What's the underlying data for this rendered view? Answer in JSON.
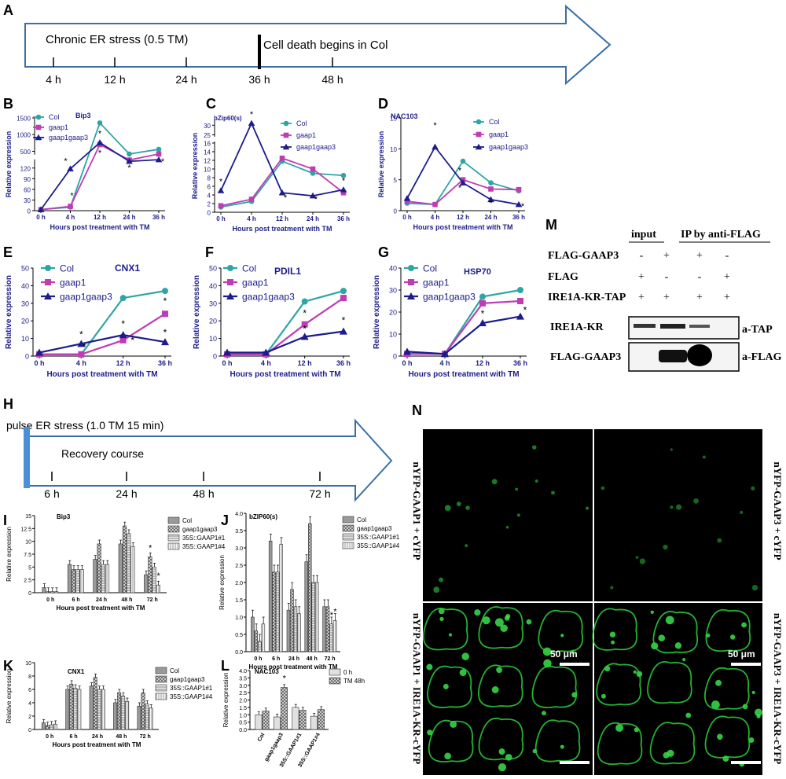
{
  "panels": {
    "A": {
      "letter": "A",
      "title": "Chronic ER stress (0.5 TM)",
      "event": "Cell death begins in Col",
      "ticks": [
        "4 h",
        "12 h",
        "24 h",
        "36 h",
        "48 h"
      ]
    },
    "H": {
      "letter": "H",
      "title": "pulse ER stress (1.0 TM 15 min)",
      "subtitle": "Recovery course",
      "ticks": [
        "6 h",
        "24 h",
        "48 h",
        "72 h"
      ]
    },
    "M": {
      "letter": "M",
      "col_headers": [
        "input",
        "IP by anti-FLAG"
      ],
      "row_labels": [
        "FLAG-GAAP3",
        "FLAG",
        "IRE1A-KR-TAP"
      ],
      "signs": [
        [
          "-",
          "+",
          "+",
          "-"
        ],
        [
          "+",
          "-",
          "-",
          "+"
        ],
        [
          "+",
          "+",
          "+",
          "+"
        ]
      ],
      "blots": [
        {
          "label": "IRE1A-KR",
          "antibody": "a-TAP"
        },
        {
          "label": "FLAG-GAAP3",
          "antibody": "a-FLAG"
        }
      ]
    },
    "N": {
      "letter": "N",
      "labels": [
        "nYFP-GAAP1 + cYFP",
        "nYFP-GAAP3 + cYFP",
        "nYFP-GAAP1 + IRE1A-KR-cYFP",
        "nYFP-GAAP3 + IRE1A-KR-cYFP"
      ],
      "scale_bar": "50 μm"
    }
  },
  "colors": {
    "col": "#2EA5A5",
    "gaap1": "#C03CB5",
    "gaap1gaap3": "#1C1C8C",
    "axis_text": "#1C1C8C"
  },
  "chart_data": [
    {
      "letter": "B",
      "type": "line",
      "gene": "Bip3",
      "x": [
        "0 h",
        "4 h",
        "12 h",
        "24 h",
        "36 h"
      ],
      "xlabel": "Hours post treatment with TM",
      "ylabel": "Relative expression",
      "broken_axis": {
        "lower": [
          0,
          140
        ],
        "upper": [
          400,
          1500
        ]
      },
      "yticks": [
        0,
        30,
        60,
        90,
        120,
        500,
        1000,
        1500
      ],
      "series": [
        {
          "name": "Col",
          "values": [
            3,
            10,
            1350,
            420,
            560
          ]
        },
        {
          "name": "gaap1",
          "values": [
            3,
            12,
            700,
            240,
            420
          ]
        },
        {
          "name": "gaap1gaap3",
          "values": [
            3,
            118,
            760,
            200,
            250
          ]
        }
      ],
      "asterisks": [
        "*",
        "*",
        "*",
        "*",
        "*",
        "*"
      ]
    },
    {
      "letter": "C",
      "type": "line",
      "gene": "bZip60(s)",
      "x": [
        "0 h",
        "4 h",
        "12 h",
        "24 h",
        "36 h"
      ],
      "xlabel": "Hours post treatment with TM",
      "ylabel": "Relative expression",
      "broken_axis": {
        "lower": [
          0,
          16
        ],
        "upper": [
          24,
          33
        ]
      },
      "yticks": [
        0,
        2,
        4,
        6,
        8,
        10,
        12,
        14,
        16,
        25,
        30
      ],
      "series": [
        {
          "name": "Col",
          "values": [
            1.2,
            2.5,
            11.8,
            9.0,
            8.5
          ]
        },
        {
          "name": "gaap1",
          "values": [
            1.5,
            3.0,
            12.5,
            10.0,
            4.5
          ]
        },
        {
          "name": "gaap1gaap3",
          "values": [
            5.0,
            31.0,
            4.5,
            3.8,
            5.2
          ]
        }
      ],
      "asterisks": [
        "*",
        "*",
        "*",
        "*",
        "*"
      ]
    },
    {
      "letter": "D",
      "type": "line",
      "gene": "NAC103",
      "x": [
        "0 h",
        "4 h",
        "12 h",
        "24 h",
        "36 h"
      ],
      "xlabel": "Hours post treatment with TM",
      "ylabel": "Relative expression",
      "ylim": [
        0,
        15
      ],
      "yticks": [
        0,
        5,
        10,
        15
      ],
      "series": [
        {
          "name": "Col",
          "values": [
            1.2,
            1.0,
            8.0,
            4.5,
            3.2
          ]
        },
        {
          "name": "gaap1",
          "values": [
            1.5,
            1.0,
            5.0,
            3.5,
            3.4
          ]
        },
        {
          "name": "gaap1gaap3",
          "values": [
            2.0,
            10.3,
            4.5,
            1.8,
            1.0
          ]
        }
      ],
      "asterisks": [
        "*",
        "*",
        "*",
        "*",
        "*"
      ]
    },
    {
      "letter": "E",
      "type": "line",
      "gene": "CNX1",
      "x": [
        "0 h",
        "4 h",
        "12 h",
        "36 h"
      ],
      "xlabel": "Hours post treatment with TM",
      "ylabel": "Relative expression",
      "ylim": [
        0,
        50
      ],
      "yticks": [
        0,
        10,
        20,
        30,
        40,
        50
      ],
      "series": [
        {
          "name": "Col",
          "values": [
            1,
            1,
            33,
            37
          ]
        },
        {
          "name": "gaap1",
          "values": [
            1,
            1,
            9,
            24
          ]
        },
        {
          "name": "gaap1gaap3",
          "values": [
            2,
            7,
            12,
            8
          ]
        }
      ],
      "asterisks": [
        "*",
        "*",
        "*",
        "*",
        "*",
        "*"
      ]
    },
    {
      "letter": "F",
      "type": "line",
      "gene": "PDIL1",
      "x": [
        "0 h",
        "4 h",
        "12 h",
        "36 h"
      ],
      "xlabel": "Hours post treatment with TM",
      "ylabel": "Relative expression",
      "ylim": [
        0,
        50
      ],
      "yticks": [
        0,
        10,
        20,
        30,
        40,
        50
      ],
      "series": [
        {
          "name": "Col",
          "values": [
            1,
            1,
            31,
            37
          ]
        },
        {
          "name": "gaap1",
          "values": [
            1,
            1,
            18,
            33
          ]
        },
        {
          "name": "gaap1gaap3",
          "values": [
            2,
            2,
            11,
            14
          ]
        }
      ],
      "asterisks": [
        "*",
        "*",
        "*"
      ]
    },
    {
      "letter": "G",
      "type": "line",
      "gene": "HSP70",
      "x": [
        "0 h",
        "4 h",
        "12 h",
        "36 h"
      ],
      "xlabel": "Hours post treatment with TM",
      "ylabel": "Relative expression",
      "ylim": [
        0,
        40
      ],
      "yticks": [
        0,
        10,
        20,
        30,
        40
      ],
      "series": [
        {
          "name": "Col",
          "values": [
            1,
            1,
            27,
            30
          ]
        },
        {
          "name": "gaap1",
          "values": [
            1,
            1,
            24,
            25
          ]
        },
        {
          "name": "gaap1gaap3",
          "values": [
            2,
            1,
            15,
            18
          ]
        }
      ],
      "asterisks": [
        "*",
        "*"
      ]
    },
    {
      "letter": "I",
      "type": "bar",
      "gene": "Bip3",
      "categories": [
        "0 h",
        "6 h",
        "24 h",
        "48 h",
        "72 h"
      ],
      "xlabel": "Hours post treatment with TM",
      "ylabel": "Relative expression",
      "ylim": [
        0,
        15
      ],
      "yticks": [
        0,
        2.5,
        5.0,
        7.5,
        10.0,
        12.5,
        15.0
      ],
      "series": [
        {
          "name": "Col",
          "values": [
            1.0,
            5.5,
            6.5,
            9.5,
            3.5
          ]
        },
        {
          "name": "gaap1gaap3",
          "values": [
            0.2,
            4.5,
            9.5,
            13.0,
            7.0
          ]
        },
        {
          "name": "35S::GAAP1#1",
          "values": [
            0.2,
            4.5,
            5.5,
            11.5,
            5.0
          ]
        },
        {
          "name": "35S::GAAP1#4",
          "values": [
            0.2,
            4.5,
            5.5,
            9.0,
            1.5
          ]
        }
      ],
      "asterisks": [
        "*",
        "*"
      ]
    },
    {
      "letter": "J",
      "type": "bar",
      "gene": "bZIP60(s)",
      "categories": [
        "0 h",
        "6 h",
        "24 h",
        "48 h",
        "72 h"
      ],
      "xlabel": "Hours post treatment with TM",
      "ylabel": "Relative expression",
      "ylim": [
        0,
        4.0
      ],
      "yticks": [
        0,
        0.5,
        1.0,
        1.5,
        2.0,
        2.5,
        3.0,
        3.5,
        4.0
      ],
      "series": [
        {
          "name": "Col",
          "values": [
            1.0,
            3.2,
            1.2,
            2.6,
            1.3
          ]
        },
        {
          "name": "gaap1gaap3",
          "values": [
            0.6,
            2.3,
            1.8,
            3.7,
            1.3
          ]
        },
        {
          "name": "35S::GAAP1#1",
          "values": [
            0.3,
            2.3,
            1.3,
            2.0,
            0.8
          ]
        },
        {
          "name": "35S::GAAP1#4",
          "values": [
            0.8,
            3.1,
            1.1,
            2.0,
            0.9
          ]
        }
      ],
      "asterisks": [
        "*",
        "*"
      ]
    },
    {
      "letter": "K",
      "type": "bar",
      "gene": "CNX1",
      "categories": [
        "0 h",
        "6 h",
        "24 h",
        "48 h",
        "72 h"
      ],
      "xlabel": "Hours post treatment with TM",
      "ylabel": "Relative expression",
      "ylim": [
        0,
        10
      ],
      "yticks": [
        0,
        2,
        4,
        6,
        8,
        10
      ],
      "series": [
        {
          "name": "Col",
          "values": [
            1.0,
            6.0,
            6.5,
            4.0,
            3.5
          ]
        },
        {
          "name": "gaap1gaap3",
          "values": [
            0.6,
            6.8,
            7.8,
            5.5,
            5.5
          ]
        },
        {
          "name": "35S::GAAP1#1",
          "values": [
            0.7,
            6.2,
            6.0,
            5.0,
            3.8
          ]
        },
        {
          "name": "35S::GAAP1#4",
          "values": [
            0.8,
            6.0,
            6.0,
            4.2,
            3.2
          ]
        }
      ]
    },
    {
      "letter": "L",
      "type": "bar",
      "gene": "NAC103",
      "categories": [
        "Col",
        "gaap1gaap3",
        "35S::GAAP1#1",
        "35S::GAAP1#4"
      ],
      "ylabel": "Relative expression",
      "ylim": [
        0,
        4
      ],
      "yticks": [
        0,
        0.5,
        1.0,
        1.5,
        2.0,
        2.5,
        3.0,
        3.5,
        4.0
      ],
      "series": [
        {
          "name": "0 h",
          "values": [
            1.0,
            0.85,
            1.5,
            0.9
          ]
        },
        {
          "name": "TM 48h",
          "values": [
            1.25,
            2.85,
            1.3,
            1.35
          ]
        }
      ],
      "asterisks": [
        "*"
      ]
    }
  ]
}
